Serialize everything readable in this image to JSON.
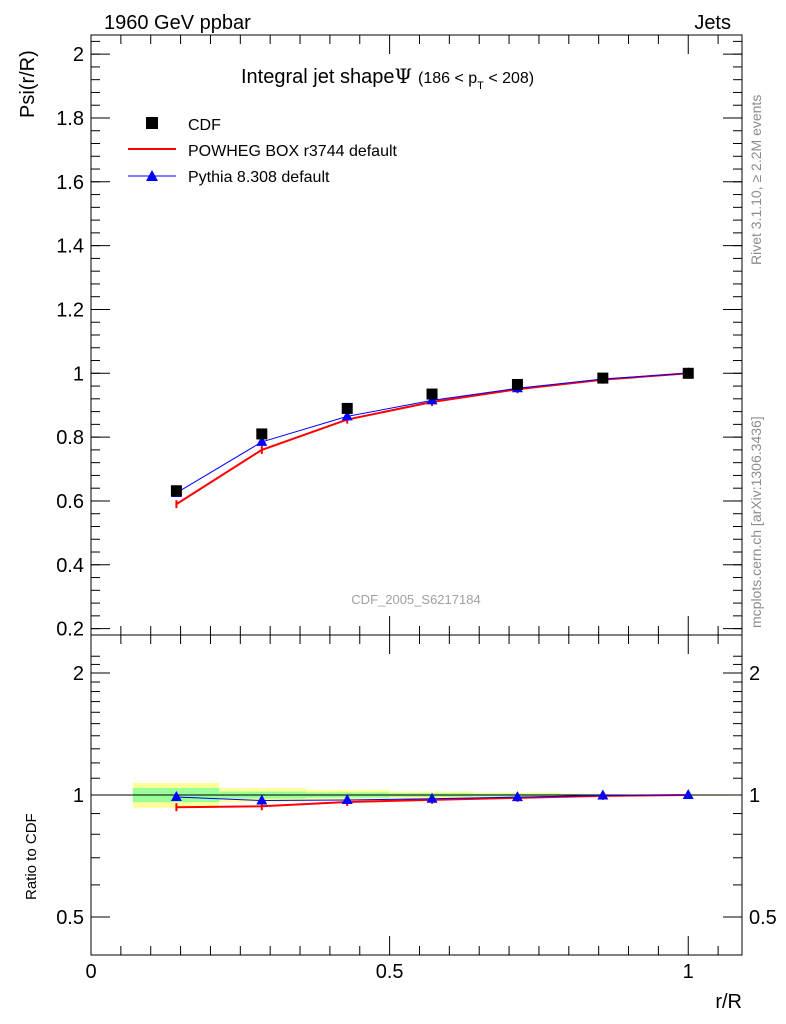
{
  "header": {
    "left": "1960 GeV ppbar",
    "right": "Jets"
  },
  "title": {
    "main": "Integral jet shape",
    "psi": "Ψ",
    "range_prefix": "(186 < p",
    "range_sub": "T",
    "range_suffix": " < 208)"
  },
  "side_labels": {
    "rivet": "Rivet 3.1.10, ≥ 2.2M events",
    "mcplots": "mcplots.cern.ch [arXiv:1306.3436]"
  },
  "watermark": "CDF_2005_S6217184",
  "legend": {
    "cdf": "CDF",
    "powheg": "POWHEG BOX r3744 default",
    "pythia": "Pythia 8.308 default"
  },
  "colors": {
    "cdf": "#000000",
    "powheg": "#ff0000",
    "pythia": "#0000ff",
    "band_inner": "#99ff99",
    "band_outer": "#ffff99"
  },
  "chart_data": [
    {
      "type": "scatter",
      "panel": "main",
      "ylabel": "Psi(r/R)",
      "xlim": [
        0,
        1.09
      ],
      "ylim": [
        0.18,
        2.06
      ],
      "yticks": [
        "0.2",
        "0.4",
        "0.6",
        "0.8",
        "1",
        "1.2",
        "1.4",
        "1.6",
        "1.8",
        "2"
      ],
      "x": [
        0.143,
        0.286,
        0.429,
        0.571,
        0.714,
        0.857,
        1.0
      ],
      "series": [
        {
          "name": "CDF",
          "style": "markers-square",
          "values": [
            0.632,
            0.81,
            0.89,
            0.935,
            0.965,
            0.985,
            1.0
          ]
        },
        {
          "name": "POWHEG BOX r3744 default",
          "style": "line",
          "values": [
            0.59,
            0.76,
            0.855,
            0.91,
            0.95,
            0.98,
            1.0
          ]
        },
        {
          "name": "Pythia 8.308 default",
          "style": "line-triangles",
          "values": [
            0.625,
            0.785,
            0.865,
            0.915,
            0.953,
            0.982,
            1.0
          ]
        }
      ]
    },
    {
      "type": "line",
      "panel": "ratio",
      "ylabel": "Ratio to CDF",
      "xlabel": "r/R",
      "xlim": [
        0,
        1.09
      ],
      "ylim": [
        0.35,
        2.3
      ],
      "yticks": [
        "0.5",
        "1",
        "2"
      ],
      "xticks": [
        "0",
        "0.5",
        "1"
      ],
      "x": [
        0.143,
        0.286,
        0.429,
        0.571,
        0.714,
        0.857,
        1.0
      ],
      "series": [
        {
          "name": "POWHEG BOX r3744 default",
          "values": [
            0.933,
            0.938,
            0.961,
            0.973,
            0.984,
            0.995,
            1.0
          ]
        },
        {
          "name": "Pythia 8.308 default",
          "values": [
            0.989,
            0.969,
            0.972,
            0.979,
            0.988,
            0.997,
            1.0
          ]
        }
      ],
      "bands": [
        {
          "x": [
            0.07,
            0.215
          ],
          "inner": [
            0.96,
            1.04
          ],
          "outer": [
            0.93,
            1.07
          ]
        },
        {
          "x": [
            0.215,
            0.36
          ],
          "inner": [
            0.98,
            1.02
          ],
          "outer": [
            0.96,
            1.04
          ]
        },
        {
          "x": [
            0.36,
            0.5
          ],
          "inner": [
            0.985,
            1.015
          ],
          "outer": [
            0.97,
            1.03
          ]
        },
        {
          "x": [
            0.5,
            0.64
          ],
          "inner": [
            0.99,
            1.01
          ],
          "outer": [
            0.98,
            1.02
          ]
        },
        {
          "x": [
            0.64,
            0.785
          ],
          "inner": [
            0.993,
            1.007
          ],
          "outer": [
            0.986,
            1.014
          ]
        },
        {
          "x": [
            0.785,
            0.93
          ],
          "inner": [
            0.996,
            1.004
          ],
          "outer": [
            0.992,
            1.008
          ]
        },
        {
          "x": [
            0.93,
            1.07
          ],
          "inner": [
            0.998,
            1.002
          ],
          "outer": [
            0.996,
            1.004
          ]
        }
      ]
    }
  ]
}
